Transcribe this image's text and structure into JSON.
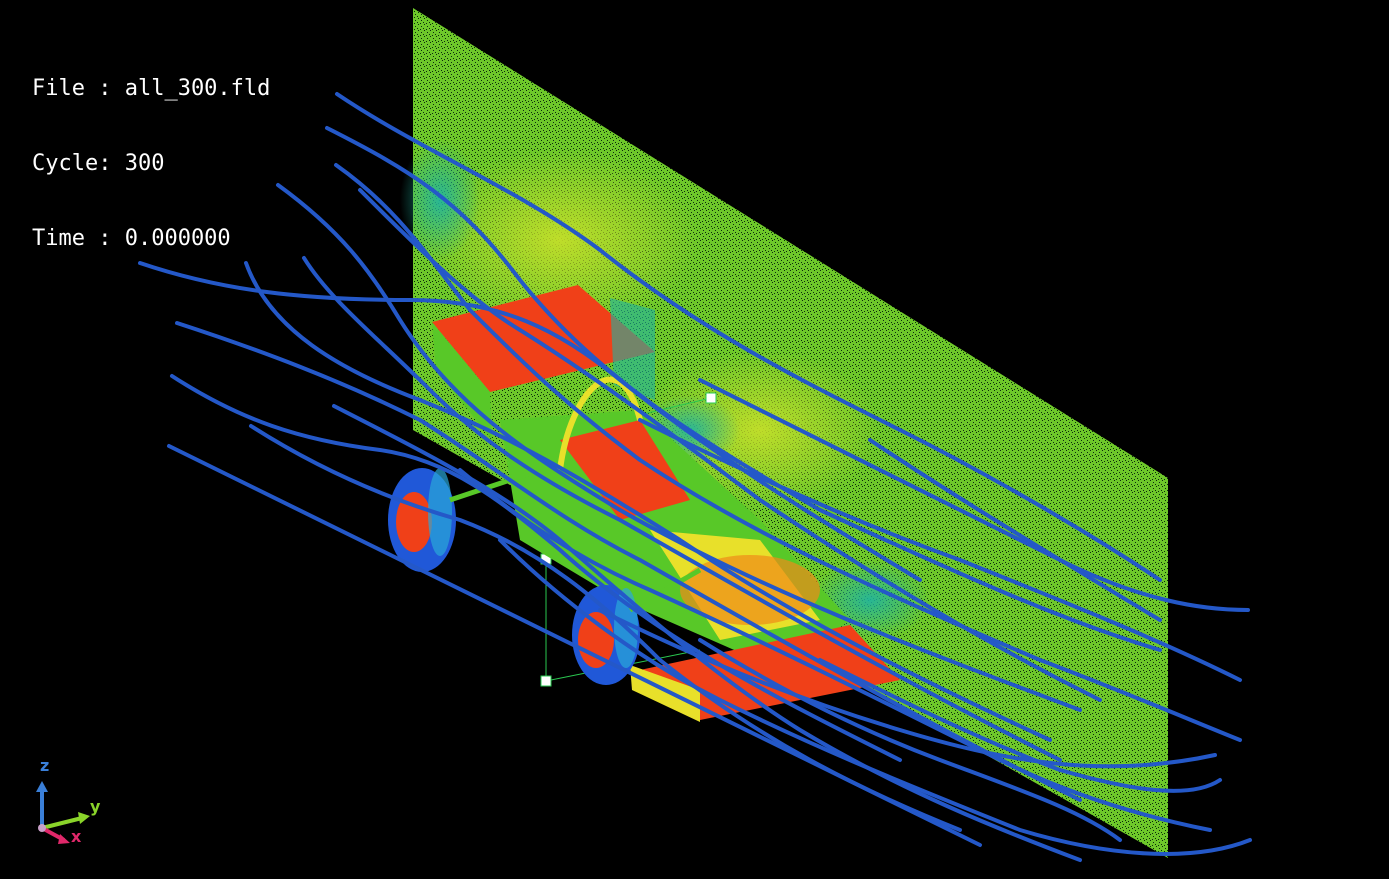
{
  "overlay": {
    "file_line": "File : all_300.fld",
    "cycle_line": "Cycle: 300",
    "time_line": "Time : 0.000000"
  },
  "axes": {
    "z_label": "z",
    "y_label": "y",
    "x_label": "x",
    "z_color": "#3a7fd8",
    "y_color": "#8ad42a",
    "x_color": "#e0286a"
  },
  "colors": {
    "background": "#000000",
    "streamline": "#2458c8",
    "plane_base": "#6ec82a",
    "plane_high": "#c8e02a",
    "plane_low": "#20b4a0",
    "car_red": "#f04018",
    "car_orange": "#f08a18",
    "car_yellow": "#e8e02a",
    "car_green": "#58c828",
    "tire_blue": "#2058d8",
    "bbox_green": "#2ac850"
  },
  "icons": {
    "car": "formula-car-model",
    "plane": "velocity-slice-plane",
    "streamlines": "streamline-set",
    "triad": "axis-triad-icon"
  }
}
